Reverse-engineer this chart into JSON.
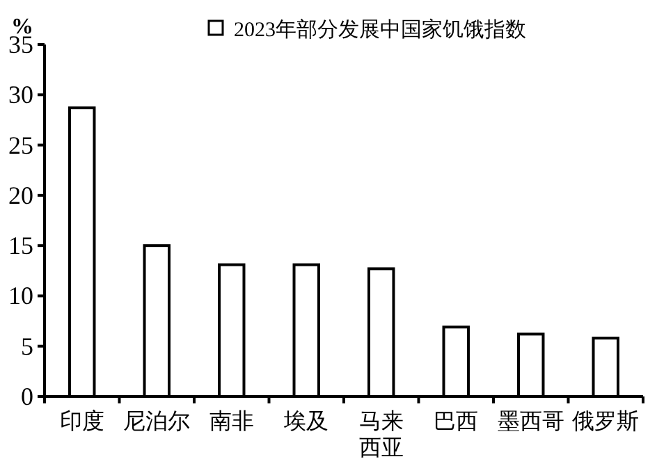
{
  "chart_data": {
    "type": "bar",
    "ylabel": "%",
    "categories": [
      "印度",
      "尼泊尔",
      "南非",
      "埃及",
      "马来西亚",
      "巴西",
      "墨西哥",
      "俄罗斯"
    ],
    "series": [
      {
        "name": "2023年部分发展中国家饥饿指数",
        "color": "#ffffff",
        "values": [
          28.7,
          15.0,
          13.1,
          13.1,
          12.7,
          6.9,
          6.2,
          5.8
        ]
      }
    ],
    "ylim": [
      0,
      35
    ],
    "yticks": [
      0,
      5,
      10,
      15,
      20,
      25,
      30,
      35
    ],
    "legend": "top",
    "grid": false
  }
}
